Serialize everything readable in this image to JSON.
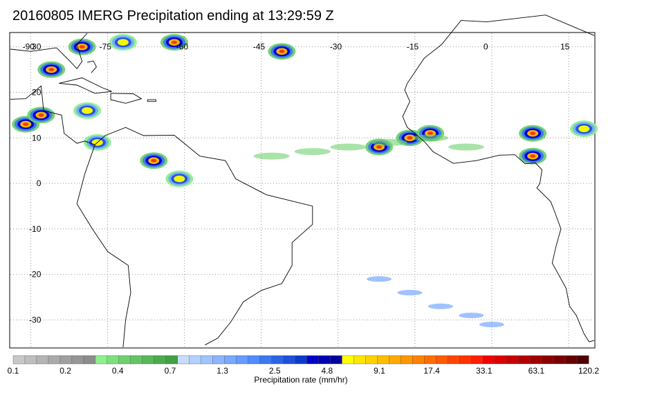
{
  "title": "20160805 IMERG Precipitation ending at 13:29:59 Z",
  "map": {
    "lon_labels": [
      "-90",
      "-75",
      "-60",
      "-45",
      "-30",
      "-15",
      "0",
      "15"
    ],
    "lon_values": [
      -90,
      -75,
      -60,
      -45,
      -30,
      -15,
      0,
      15
    ],
    "lat_labels": [
      "30",
      "20",
      "10",
      "0",
      "-10",
      "-20",
      "-30"
    ],
    "lat_values": [
      30,
      20,
      10,
      0,
      -10,
      -20,
      -30
    ],
    "lon_range": [
      -94,
      20
    ],
    "lat_range": [
      -36,
      33
    ],
    "grid": "dotted",
    "land_outline_color": "#000000"
  },
  "colorbar": {
    "label": "Precipitation rate (mm/hr)",
    "tick_labels": [
      "0.1",
      "0.2",
      "0.4",
      "0.7",
      "1.3",
      "2.5",
      "4.8",
      "9.1",
      "17.4",
      "33.1",
      "63.1",
      "120.2"
    ],
    "colors": [
      "#c8c8c8",
      "#bebebe",
      "#b4b4b4",
      "#aaaaaa",
      "#a0a0a0",
      "#969696",
      "#8c8c8c",
      "#8ef08e",
      "#7de07d",
      "#6fd06f",
      "#64c464",
      "#58b858",
      "#4cac4c",
      "#44a044",
      "#c8dcff",
      "#b4d0ff",
      "#a0c4ff",
      "#8cb4ff",
      "#78a8ff",
      "#649cff",
      "#508cff",
      "#3c78f0",
      "#2c64e6",
      "#1e50dc",
      "#0a3ccc",
      "#0000c8",
      "#0000b4",
      "#0000a0",
      "#ffff00",
      "#ffe600",
      "#ffd200",
      "#ffbe00",
      "#ffaa00",
      "#ff9600",
      "#ff8200",
      "#ff6e00",
      "#ff5a00",
      "#ff4600",
      "#ff3200",
      "#ff1e00",
      "#f00000",
      "#dc0000",
      "#c80000",
      "#b40000",
      "#a00000",
      "#8c0000",
      "#780000",
      "#640000",
      "#500000"
    ]
  },
  "precip_cells": [
    {
      "lon": -86,
      "lat": 25,
      "level": "heavy"
    },
    {
      "lon": -80,
      "lat": 30,
      "level": "heavy"
    },
    {
      "lon": -72,
      "lat": 31,
      "level": "moderate"
    },
    {
      "lon": -62,
      "lat": 31,
      "level": "heavy"
    },
    {
      "lon": -41,
      "lat": 29,
      "level": "heavy"
    },
    {
      "lon": -91,
      "lat": 13,
      "level": "heavy"
    },
    {
      "lon": -88,
      "lat": 15,
      "level": "heavy"
    },
    {
      "lon": -79,
      "lat": 16,
      "level": "moderate"
    },
    {
      "lon": -77,
      "lat": 9,
      "level": "moderate"
    },
    {
      "lon": -66,
      "lat": 5,
      "level": "heavy"
    },
    {
      "lon": -61,
      "lat": 1,
      "level": "moderate"
    },
    {
      "lon": -22,
      "lat": 8,
      "level": "heavy"
    },
    {
      "lon": -16,
      "lat": 10,
      "level": "heavy"
    },
    {
      "lon": -12,
      "lat": 11,
      "level": "heavy"
    },
    {
      "lon": 8,
      "lat": 6,
      "level": "heavy"
    },
    {
      "lon": 8,
      "lat": 11,
      "level": "heavy"
    },
    {
      "lon": 18,
      "lat": 12,
      "level": "moderate"
    }
  ]
}
